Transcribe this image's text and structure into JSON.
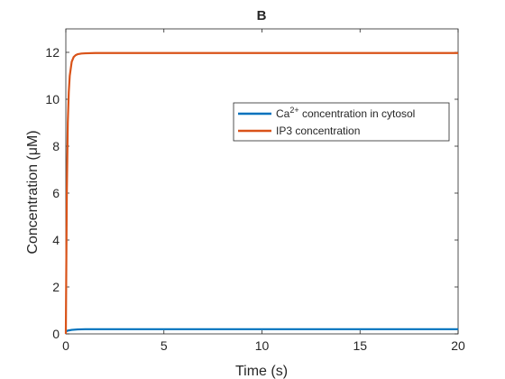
{
  "chart_data": {
    "type": "line",
    "title": "B",
    "xlabel": "Time (s)",
    "ylabel": "Concentration (μM)",
    "xlim": [
      0,
      20
    ],
    "ylim": [
      0,
      13
    ],
    "xticks": [
      0,
      5,
      10,
      15,
      20
    ],
    "yticks": [
      0,
      2,
      4,
      6,
      8,
      10,
      12
    ],
    "grid": false,
    "legend_position": "top-right",
    "series": [
      {
        "name": "Ca2+ concentration in cytosol",
        "legend_label": {
          "base": "Ca",
          "sup": "2+",
          "rest": " concentration in cytosol"
        },
        "color": "#0072BD",
        "x": [
          0,
          0.1,
          0.3,
          0.6,
          1,
          2,
          5,
          10,
          15,
          20
        ],
        "y": [
          0.1,
          0.14,
          0.17,
          0.19,
          0.2,
          0.2,
          0.2,
          0.2,
          0.2,
          0.2
        ]
      },
      {
        "name": "IP3 concentration",
        "legend_label": {
          "base": "IP3 concentration",
          "sup": "",
          "rest": ""
        },
        "color": "#D95319",
        "x": [
          0,
          0.05,
          0.1,
          0.15,
          0.2,
          0.3,
          0.4,
          0.5,
          0.6,
          0.8,
          1.0,
          1.5,
          2,
          5,
          10,
          15,
          20
        ],
        "y": [
          0.0,
          6.0,
          9.0,
          10.3,
          11.0,
          11.6,
          11.8,
          11.88,
          11.92,
          11.95,
          11.96,
          11.97,
          11.97,
          11.97,
          11.97,
          11.97,
          11.97
        ]
      }
    ]
  }
}
